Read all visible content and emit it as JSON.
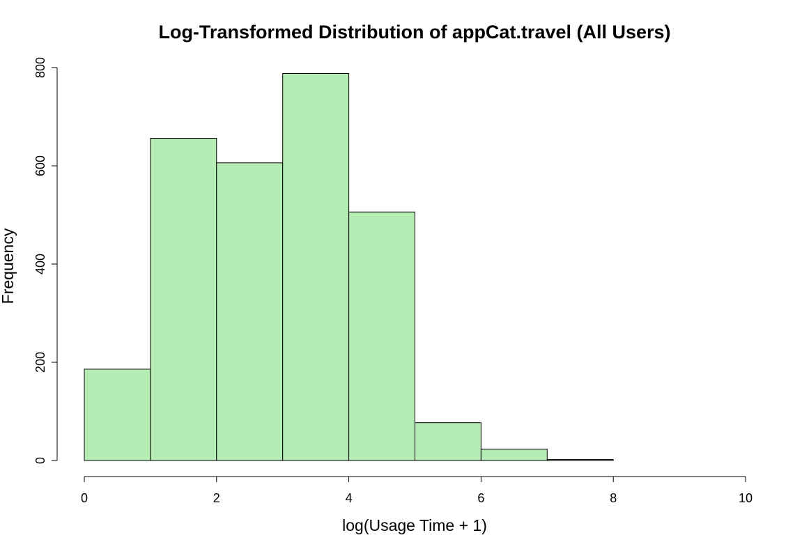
{
  "chart_data": {
    "type": "bar",
    "title": "Log-Transformed Distribution of appCat.travel (All Users)",
    "xlabel": "log(Usage Time + 1)",
    "ylabel": "Frequency",
    "bins": [
      {
        "start": 0,
        "end": 1,
        "count": 186
      },
      {
        "start": 1,
        "end": 2,
        "count": 656
      },
      {
        "start": 2,
        "end": 3,
        "count": 606
      },
      {
        "start": 3,
        "end": 4,
        "count": 788
      },
      {
        "start": 4,
        "end": 5,
        "count": 506
      },
      {
        "start": 5,
        "end": 6,
        "count": 77
      },
      {
        "start": 6,
        "end": 7,
        "count": 23
      },
      {
        "start": 7,
        "end": 8,
        "count": 2
      },
      {
        "start": 8,
        "end": 9,
        "count": 0
      },
      {
        "start": 9,
        "end": 10,
        "count": 0
      }
    ],
    "xlim": [
      0,
      10
    ],
    "ylim": [
      0,
      800
    ],
    "xticks": [
      0,
      2,
      4,
      6,
      8,
      10
    ],
    "yticks": [
      0,
      200,
      400,
      600,
      800
    ],
    "bar_color": "#b4ecb4",
    "grid": false,
    "legend": "none"
  }
}
